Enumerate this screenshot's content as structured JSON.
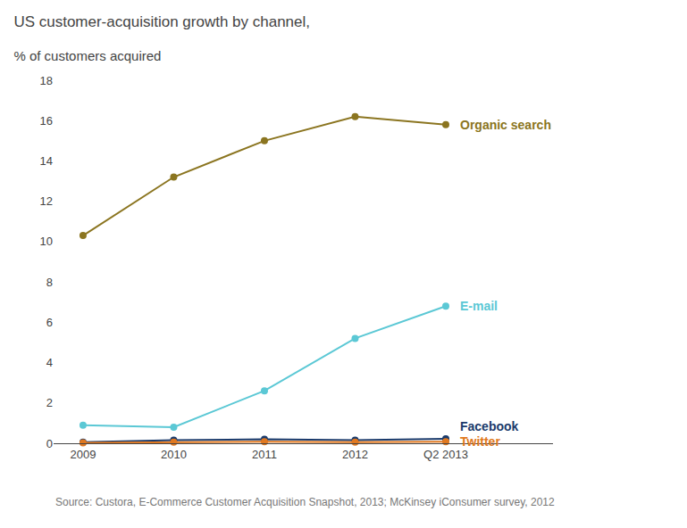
{
  "chart_data": {
    "type": "line",
    "title": "US customer-acquisition growth by channel,",
    "subtitle": "% of customers acquired",
    "categories": [
      "2009",
      "2010",
      "2011",
      "2012",
      "Q2 2013"
    ],
    "series": [
      {
        "name": "Organic search",
        "color": "#8B7520",
        "marker": "circle",
        "values": [
          10.3,
          13.2,
          15.0,
          16.2,
          15.8
        ]
      },
      {
        "name": "E-mail",
        "color": "#5BC8D5",
        "marker": "circle",
        "values": [
          0.9,
          0.8,
          2.6,
          5.2,
          6.8
        ]
      },
      {
        "name": "Facebook",
        "color": "#1A3A6B",
        "marker": "circle",
        "values": [
          0.05,
          0.15,
          0.2,
          0.15,
          0.22
        ]
      },
      {
        "name": "Twitter",
        "color": "#E07820",
        "marker": "circle",
        "values": [
          0.02,
          0.05,
          0.08,
          0.06,
          0.08
        ]
      }
    ],
    "ylim": [
      0,
      18
    ],
    "yticks": [
      0,
      2,
      4,
      6,
      8,
      10,
      12,
      14,
      16,
      18
    ],
    "grid": false,
    "annotations": [
      "Source: Custora, E-Commerce Customer Acquisition Snapshot, 2013; McKinsey iConsumer survey, 2012"
    ]
  }
}
